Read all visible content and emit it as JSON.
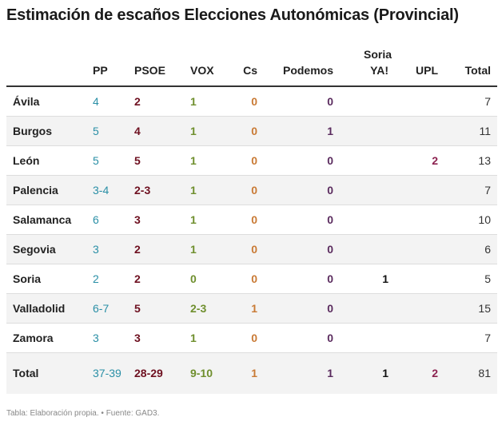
{
  "title": "Estimación de escaños Elecciones Autonómicas (Provincial)",
  "columns": [
    "",
    "PP",
    "PSOE",
    "VOX",
    "Cs",
    "Podemos",
    "Soria YA!",
    "UPL",
    "Total"
  ],
  "rows": [
    [
      "Ávila",
      "4",
      "2",
      "1",
      "0",
      "0",
      "",
      "",
      "7"
    ],
    [
      "Burgos",
      "5",
      "4",
      "1",
      "0",
      "1",
      "",
      "",
      "11"
    ],
    [
      "León",
      "5",
      "5",
      "1",
      "0",
      "0",
      "",
      "2",
      "13"
    ],
    [
      "Palencia",
      "3-4",
      "2-3",
      "1",
      "0",
      "0",
      "",
      "",
      "7"
    ],
    [
      "Salamanca",
      "6",
      "3",
      "1",
      "0",
      "0",
      "",
      "",
      "10"
    ],
    [
      "Segovia",
      "3",
      "2",
      "1",
      "0",
      "0",
      "",
      "",
      "6"
    ],
    [
      "Soria",
      "2",
      "2",
      "0",
      "0",
      "0",
      "1",
      "",
      "5"
    ],
    [
      "Valladolid",
      "6-7",
      "5",
      "2-3",
      "1",
      "0",
      "",
      "",
      "15"
    ],
    [
      "Zamora",
      "3",
      "3",
      "1",
      "0",
      "0",
      "",
      "",
      "7"
    ],
    [
      "Total",
      "37-39",
      "28-29",
      "9-10",
      "1",
      "1",
      "1",
      "2",
      "81"
    ]
  ],
  "colors": {
    "PP": "#2a8fa6",
    "PSOE": "#6e1020",
    "VOX": "#6f8f2e",
    "Cs": "#c97a35",
    "Podemos": "#5a2b5e",
    "Soria YA!": "#111111",
    "UPL": "#8c2250"
  },
  "footer": "Tabla: Elaboración propia. • Fuente: GAD3."
}
